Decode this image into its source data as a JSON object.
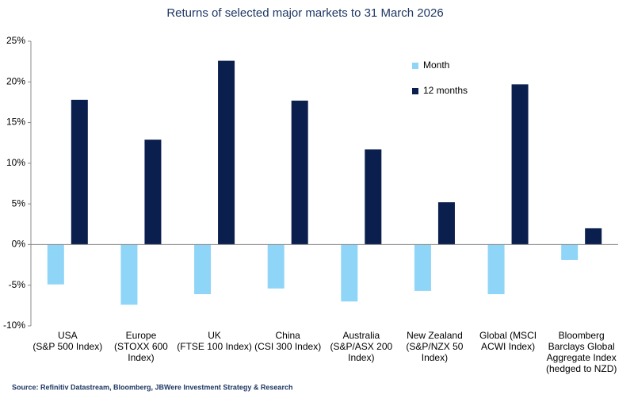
{
  "chart_data": {
    "type": "bar",
    "title": "Returns of selected major markets to 31 March 2026",
    "source": "Source: Refinitiv Datastream, Bloomberg, JBWere Investment Strategy & Research",
    "categories": [
      [
        "USA",
        "(S&P 500 Index)"
      ],
      [
        "Europe",
        "(STOXX 600",
        "Index)"
      ],
      [
        "UK",
        "(FTSE 100 Index)"
      ],
      [
        "China",
        "(CSI 300 Index)"
      ],
      [
        "Australia",
        "(S&P/ASX 200",
        "Index)"
      ],
      [
        "New Zealand",
        "(S&P/NZX 50",
        "Index)"
      ],
      [
        "Global (MSCI",
        "ACWI Index)"
      ],
      [
        "Bloomberg",
        "Barclays Global",
        "Aggregate Index",
        "(hedged to NZD)"
      ]
    ],
    "series": [
      {
        "name": "Month",
        "color": "#8fd5f8",
        "values": [
          -4.9,
          -7.4,
          -6.1,
          -5.4,
          -7.0,
          -5.7,
          -6.1,
          -1.9
        ]
      },
      {
        "name": "12 months",
        "color": "#0b1f4e",
        "values": [
          17.8,
          12.9,
          22.6,
          17.7,
          11.7,
          5.2,
          19.7,
          2.0
        ]
      }
    ],
    "ylim": [
      -10,
      25
    ],
    "yticks": [
      {
        "value": -10,
        "label": "-10%"
      },
      {
        "value": -5,
        "label": "-5%"
      },
      {
        "value": 0,
        "label": "0%"
      },
      {
        "value": 5,
        "label": "5%"
      },
      {
        "value": 10,
        "label": "10%"
      },
      {
        "value": 15,
        "label": "15%"
      },
      {
        "value": 20,
        "label": "20%"
      },
      {
        "value": 25,
        "label": "25%"
      }
    ],
    "grid": false,
    "legend": "upper right"
  }
}
